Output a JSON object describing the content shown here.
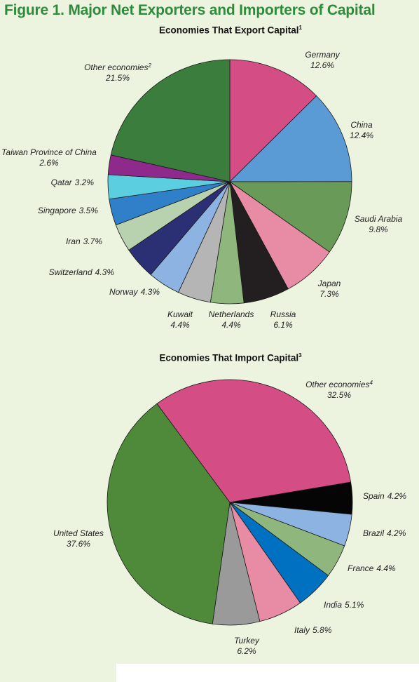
{
  "figure_title": "Figure 1. Major Net Exporters and Importers of Capital",
  "chart_data": [
    {
      "type": "pie",
      "title": "Economies That Export Capital",
      "title_footnote": "1",
      "slices": [
        {
          "label": "Germany",
          "value": 12.6,
          "display": "12.6%",
          "color": "#d44d85"
        },
        {
          "label": "China",
          "value": 12.4,
          "display": "12.4%",
          "color": "#5b9bd5"
        },
        {
          "label": "Saudi Arabia",
          "value": 9.8,
          "display": "9.8%",
          "color": "#6a9a57"
        },
        {
          "label": "Japan",
          "value": 7.3,
          "display": "7.3%",
          "color": "#e88ca6"
        },
        {
          "label": "Russia",
          "value": 6.1,
          "display": "6.1%",
          "color": "#231f20"
        },
        {
          "label": "Netherlands",
          "value": 4.4,
          "display": "4.4%",
          "color": "#8fb77d"
        },
        {
          "label": "Kuwait",
          "value": 4.4,
          "display": "4.4%",
          "color": "#b5b5b5"
        },
        {
          "label": "Norway",
          "value": 4.3,
          "display": "4.3%",
          "color": "#8db3e2"
        },
        {
          "label": "Switzerland",
          "value": 4.3,
          "display": "4.3%",
          "color": "#2b2f73"
        },
        {
          "label": "Iran",
          "value": 3.7,
          "display": "3.7%",
          "color": "#b8d2b0"
        },
        {
          "label": "Singapore",
          "value": 3.5,
          "display": "3.5%",
          "color": "#2f80c8"
        },
        {
          "label": "Qatar",
          "value": 3.2,
          "display": "3.2%",
          "color": "#5bcfe0"
        },
        {
          "label": "Taiwan Province of China",
          "value": 2.6,
          "display": "2.6%",
          "color": "#8e2a8c"
        },
        {
          "label": "Other economies",
          "value": 21.5,
          "display": "21.5%",
          "color": "#3a7d3c",
          "footnote": "2"
        }
      ]
    },
    {
      "type": "pie",
      "title": "Economies That Import Capital",
      "title_footnote": "3",
      "slices": [
        {
          "label": "Other economies",
          "value": 32.5,
          "display": "32.5%",
          "color": "#d44d85",
          "footnote": "4"
        },
        {
          "label": "Spain",
          "value": 4.2,
          "display": "4.2%",
          "color": "#050505"
        },
        {
          "label": "Brazil",
          "value": 4.2,
          "display": "4.2%",
          "color": "#8db3e2"
        },
        {
          "label": "France",
          "value": 4.4,
          "display": "4.4%",
          "color": "#8fb77d"
        },
        {
          "label": "India",
          "value": 5.1,
          "display": "5.1%",
          "color": "#0070c0"
        },
        {
          "label": "Italy",
          "value": 5.8,
          "display": "5.8%",
          "color": "#e88ca6"
        },
        {
          "label": "Turkey",
          "value": 6.2,
          "display": "6.2%",
          "color": "#9a9a9a"
        },
        {
          "label": "United States",
          "value": 37.6,
          "display": "37.6%",
          "color": "#4e8a3a"
        }
      ]
    }
  ]
}
